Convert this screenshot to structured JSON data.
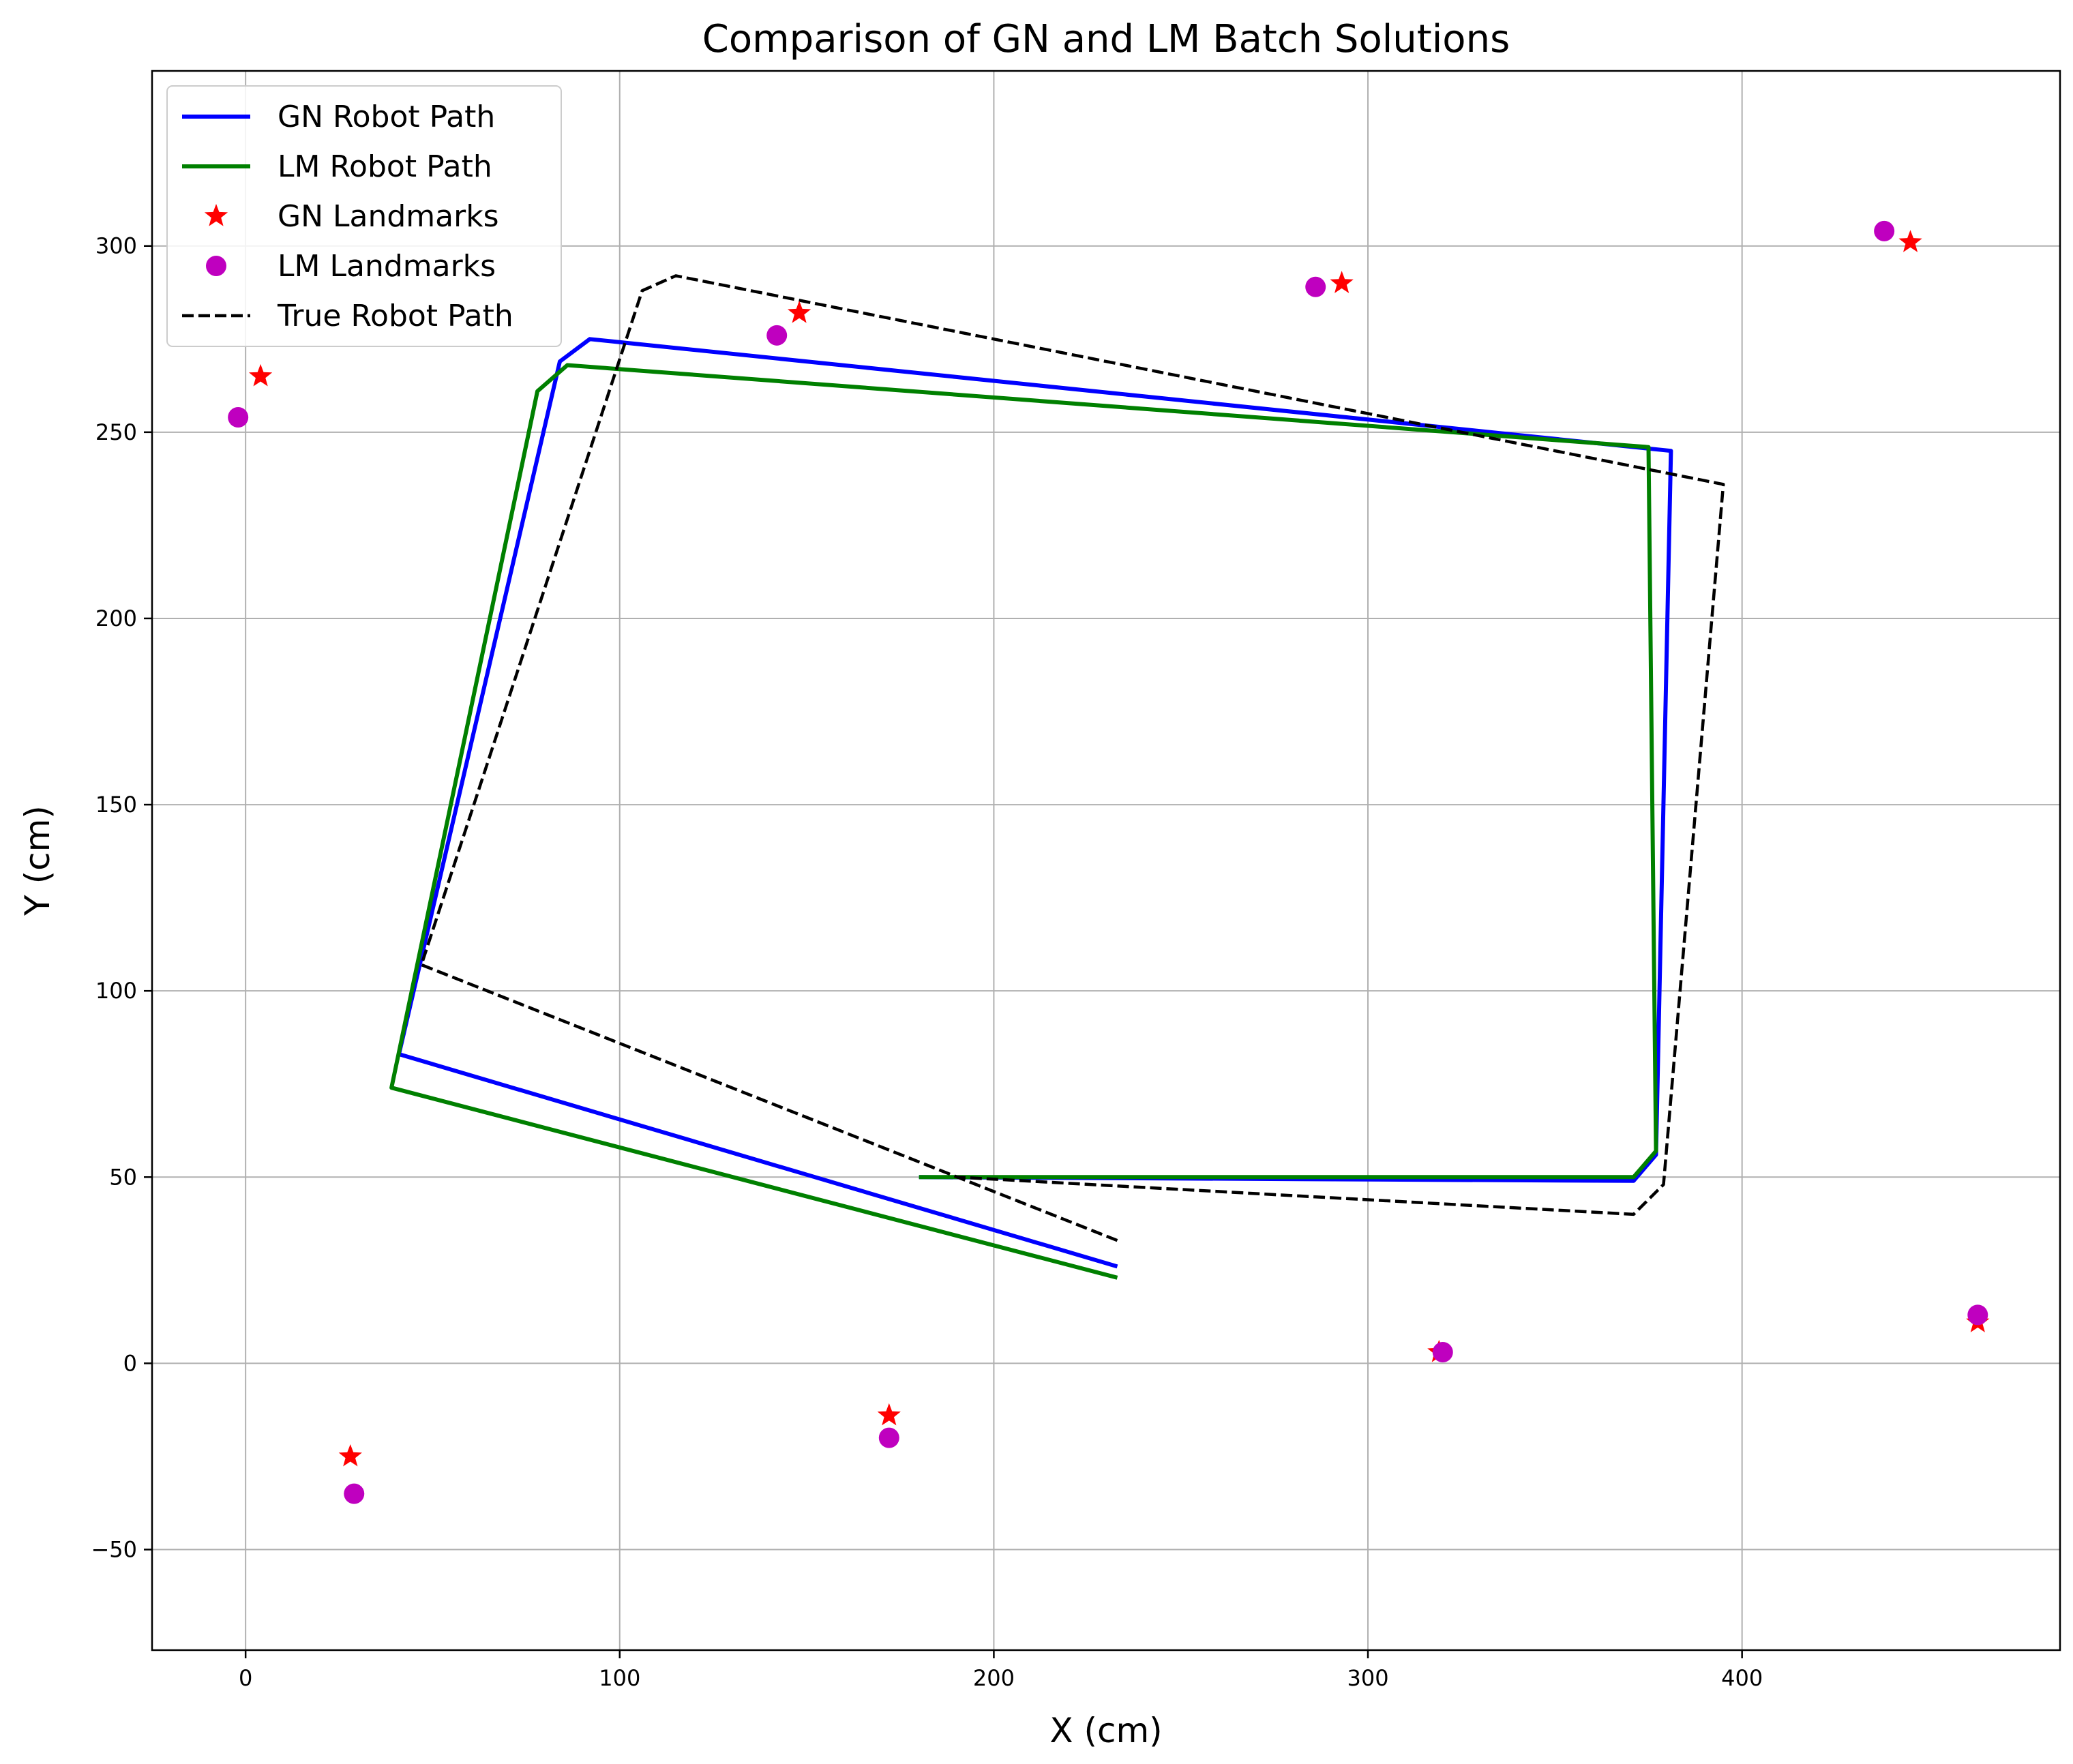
{
  "chart_data": {
    "type": "scatter",
    "title": "Comparison of GN and LM Batch Solutions",
    "xlabel": "X (cm)",
    "ylabel": "Y (cm)",
    "xlim": [
      -25,
      485
    ],
    "ylim": [
      -77,
      347
    ],
    "xticks": [
      0,
      100,
      200,
      300,
      400
    ],
    "yticks": [
      -50,
      0,
      50,
      100,
      150,
      200,
      250,
      300
    ],
    "xtick_labels": [
      "0",
      "100",
      "200",
      "300",
      "400"
    ],
    "ytick_labels": [
      "−50",
      "0",
      "50",
      "100",
      "150",
      "200",
      "250",
      "300"
    ],
    "grid": true,
    "legend_position": "upper-left",
    "colors": {
      "gn_path": "#0000ff",
      "lm_path": "#008000",
      "gn_landmarks": "#ff0000",
      "lm_landmarks": "#bf00bf",
      "true_path": "#000000"
    },
    "series": [
      {
        "name": "GN Robot Path",
        "kind": "line",
        "style": "solid",
        "color": "#0000ff",
        "points": [
          [
            233,
            26
          ],
          [
            41,
            83
          ],
          [
            84,
            269
          ],
          [
            92,
            275
          ],
          [
            381,
            245
          ],
          [
            377,
            56
          ],
          [
            371,
            49
          ],
          [
            180,
            50
          ]
        ]
      },
      {
        "name": "LM Robot Path",
        "kind": "line",
        "style": "solid",
        "color": "#008000",
        "points": [
          [
            233,
            23
          ],
          [
            39,
            74
          ],
          [
            78,
            261
          ],
          [
            86,
            268
          ],
          [
            375,
            246
          ],
          [
            377,
            57
          ],
          [
            371,
            50
          ],
          [
            180,
            50
          ]
        ]
      },
      {
        "name": "GN Landmarks",
        "kind": "scatter",
        "marker": "star",
        "color": "#ff0000",
        "points": [
          [
            4,
            265
          ],
          [
            148,
            282
          ],
          [
            293,
            290
          ],
          [
            445,
            301
          ],
          [
            28,
            -25
          ],
          [
            172,
            -14
          ],
          [
            319,
            3
          ],
          [
            463,
            11
          ]
        ]
      },
      {
        "name": "LM Landmarks",
        "kind": "scatter",
        "marker": "circle",
        "color": "#bf00bf",
        "points": [
          [
            -2,
            254
          ],
          [
            142,
            276
          ],
          [
            286,
            289
          ],
          [
            438,
            304
          ],
          [
            29,
            -35
          ],
          [
            172,
            -20
          ],
          [
            320,
            3
          ],
          [
            463,
            13
          ]
        ]
      },
      {
        "name": "True Robot Path",
        "kind": "line",
        "style": "dashed",
        "color": "#000000",
        "points": [
          [
            233,
            33
          ],
          [
            47,
            107
          ],
          [
            106,
            288
          ],
          [
            115,
            292
          ],
          [
            395,
            236
          ],
          [
            379,
            48
          ],
          [
            371,
            40
          ],
          [
            190,
            50
          ]
        ]
      }
    ]
  }
}
